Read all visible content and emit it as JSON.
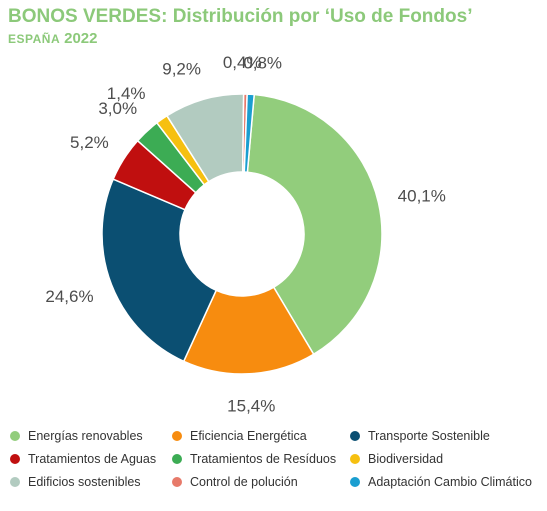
{
  "header": {
    "title": "BONOS VERDES: Distribución por ‘Uso de Fondos’",
    "subtitle_word": "ESPAÑA",
    "subtitle_year": "2022"
  },
  "chart_data": {
    "type": "pie",
    "style": "donut",
    "title": "BONOS VERDES: Distribución por ‘Uso de Fondos’",
    "subtitle": "ESPAÑA 2022",
    "legend_position": "bottom",
    "categories": [
      "Energías renovables",
      "Eficiencia Energética",
      "Transporte Sostenible",
      "Tratamientos de Aguas",
      "Tratamientos de Resíduos",
      "Biodiversidad",
      "Edificios sostenibles",
      "Control de polución",
      "Adaptación Cambio Climático"
    ],
    "values": [
      40.1,
      15.4,
      24.6,
      5.2,
      3.0,
      1.4,
      9.2,
      0.4,
      0.8
    ],
    "data_labels": [
      "40,1%",
      "15,4%",
      "24,6%",
      "5,2%",
      "3,0%",
      "1,4%",
      "9,2%",
      "0,4%",
      "0,8%"
    ],
    "colors": [
      "#92cd7c",
      "#f78c0f",
      "#0b4f72",
      "#c00f0f",
      "#3cac54",
      "#f6c010",
      "#b2cbc0",
      "#e77a6a",
      "#1a9ed0"
    ]
  }
}
